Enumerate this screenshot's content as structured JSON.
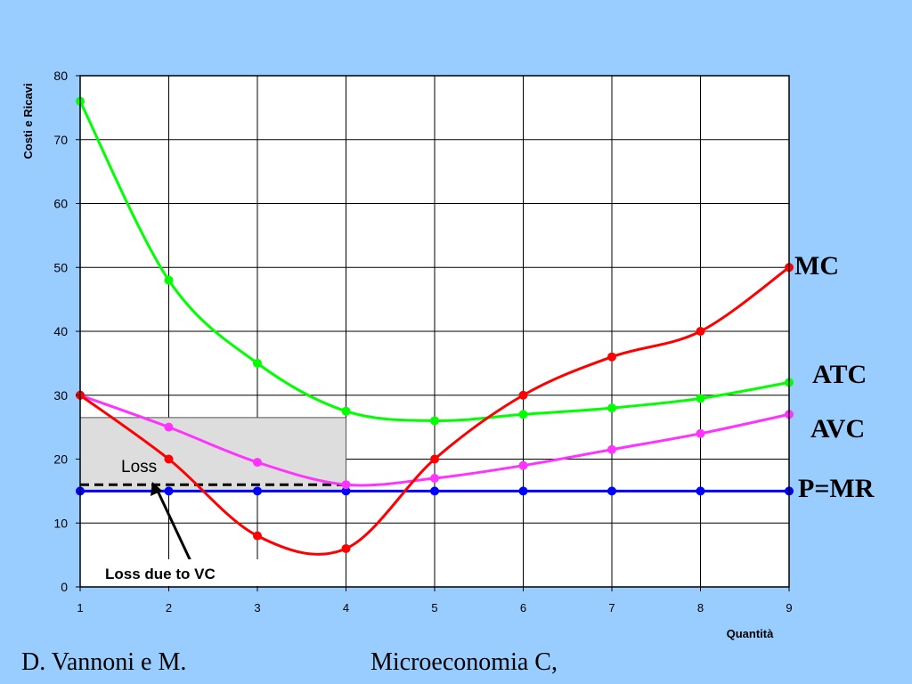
{
  "chart_data": {
    "type": "line",
    "title": "",
    "xlabel": "Quantità",
    "ylabel": "Costi e Ricavi",
    "xlim": [
      1,
      9
    ],
    "ylim": [
      0,
      80
    ],
    "x_ticks": [
      "1",
      "2",
      "3",
      "4",
      "5",
      "6",
      "7",
      "8",
      "9"
    ],
    "y_ticks": [
      "0",
      "10",
      "20",
      "30",
      "40",
      "50",
      "60",
      "70",
      "80"
    ],
    "grid": true,
    "x": [
      1,
      2,
      3,
      4,
      5,
      6,
      7,
      8,
      9
    ],
    "series": [
      {
        "name": "MC",
        "color": "#ff0000",
        "values": [
          30,
          20,
          8,
          6,
          20,
          30,
          36,
          40,
          50
        ]
      },
      {
        "name": "ATC",
        "color": "#00ff00",
        "values": [
          76,
          48,
          35,
          27.5,
          26,
          27,
          28,
          29.5,
          32
        ]
      },
      {
        "name": "AVC",
        "color": "#ff33ff",
        "values": [
          30,
          25,
          19.5,
          16,
          17,
          19,
          21.5,
          24,
          27
        ]
      },
      {
        "name": "P=MR",
        "color": "#0000ff",
        "values": [
          15,
          15,
          15,
          15,
          15,
          15,
          15,
          15,
          15
        ]
      }
    ],
    "shaded_region": {
      "x": [
        1,
        4
      ],
      "y": [
        15,
        26.5
      ],
      "color": "#dddddd"
    },
    "dashed_line": {
      "y": 16,
      "x": [
        1,
        4
      ]
    },
    "annotations": {
      "loss": "Loss",
      "loss_due_to_vc": "Loss due to VC"
    }
  },
  "footer": {
    "left": "D. Vannoni e M.",
    "center": "Microeconomia C,"
  }
}
